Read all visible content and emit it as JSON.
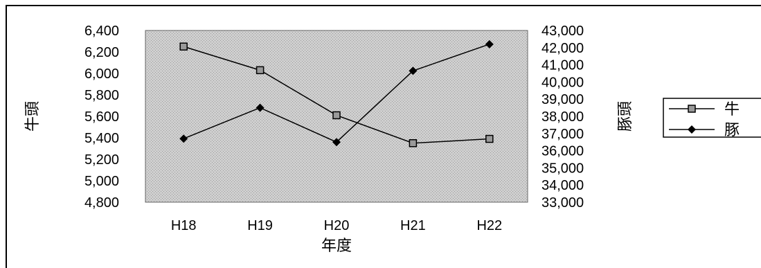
{
  "chart_data": {
    "type": "line",
    "categories": [
      "H18",
      "H19",
      "H20",
      "H21",
      "H22"
    ],
    "xlabel": "年度",
    "ylabel_left": "牛頭",
    "ylabel_right": "豚頭",
    "y_left": {
      "lim": [
        4800,
        6400
      ],
      "ticks": [
        "4,800",
        "5,000",
        "5,200",
        "5,400",
        "5,600",
        "5,800",
        "6,000",
        "6,200",
        "6,400"
      ],
      "tick_values": [
        4800,
        5000,
        5200,
        5400,
        5600,
        5800,
        6000,
        6200,
        6400
      ]
    },
    "y_right": {
      "lim": [
        33000,
        43000
      ],
      "ticks": [
        "33,000",
        "34,000",
        "35,000",
        "36,000",
        "37,000",
        "38,000",
        "39,000",
        "40,000",
        "41,000",
        "42,000",
        "43,000"
      ],
      "tick_values": [
        33000,
        34000,
        35000,
        36000,
        37000,
        38000,
        39000,
        40000,
        41000,
        42000,
        43000
      ]
    },
    "series": [
      {
        "name": "牛",
        "axis": "left",
        "marker": "square",
        "values": [
          6250,
          6030,
          5610,
          5350,
          5390
        ]
      },
      {
        "name": "豚",
        "axis": "right",
        "marker": "diamond",
        "values": [
          36700,
          38500,
          36500,
          40650,
          42200
        ]
      }
    ],
    "legend_position": "right",
    "grid": false,
    "colors": {
      "plot_background": "#c8c8c8",
      "line": "#000000"
    }
  }
}
